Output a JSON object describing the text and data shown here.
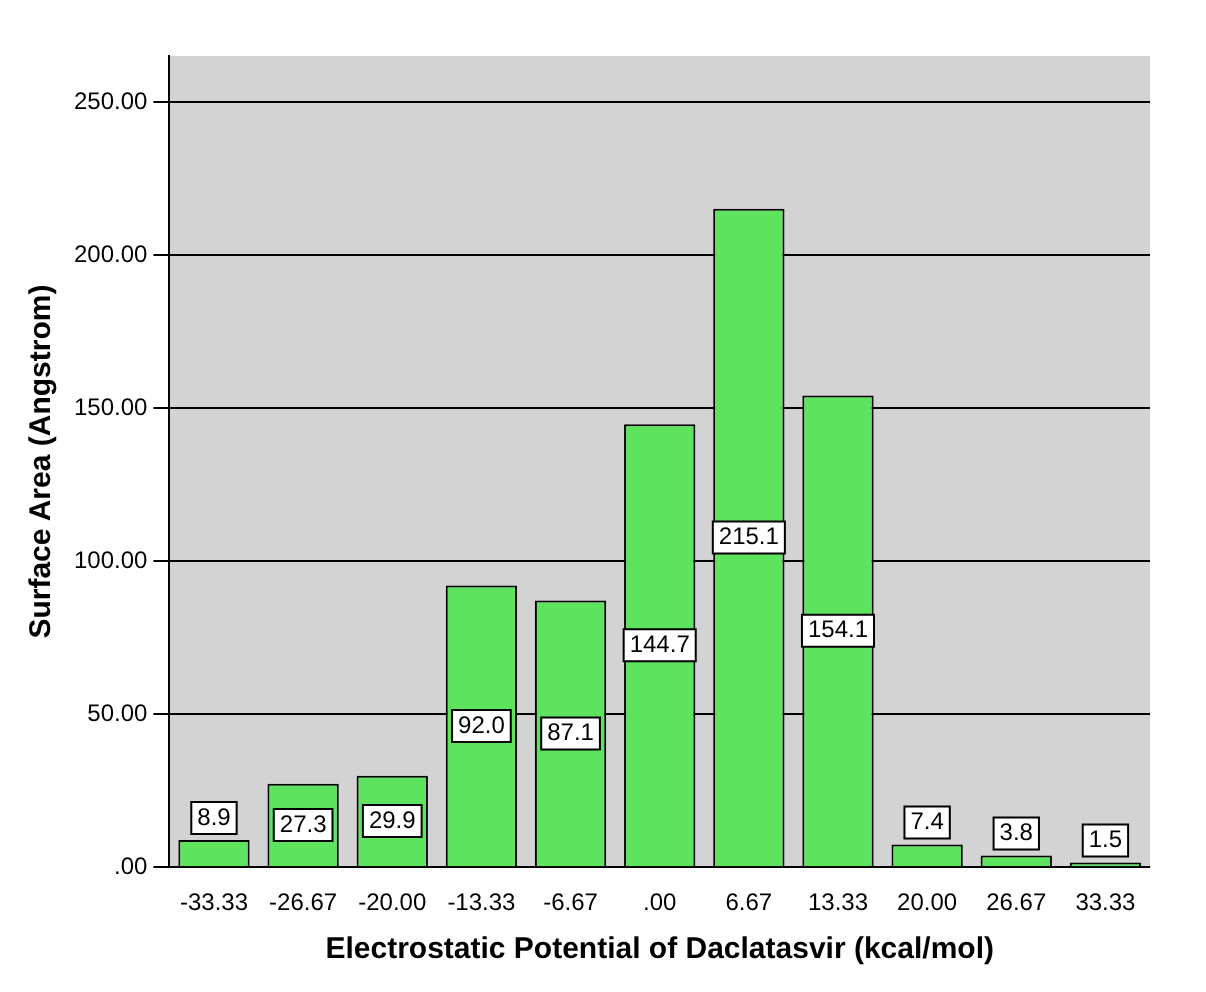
{
  "chart_data": {
    "type": "bar",
    "xlabel": "Electrostatic Potential of Daclatasvir (kcal/mol)",
    "ylabel": "Surface Area (Angstrom)",
    "categories": [
      "-33.33",
      "-26.67",
      "-20.00",
      "-13.33",
      "-6.67",
      ".00",
      "6.67",
      "13.33",
      "20.00",
      "26.67",
      "33.33"
    ],
    "values": [
      8.9,
      27.3,
      29.9,
      92.0,
      87.1,
      144.7,
      215.1,
      154.1,
      7.4,
      3.8,
      1.5
    ],
    "value_labels": [
      "8.9",
      "27.3",
      "29.9",
      "92.0",
      "87.1",
      "144.7",
      "215.1",
      "154.1",
      "7.4",
      "3.8",
      "1.5"
    ],
    "color": "#5de35d",
    "ylim": [
      0,
      265
    ],
    "yticks": [
      {
        "value": 0,
        "label": ".00"
      },
      {
        "value": 50,
        "label": "50.00"
      },
      {
        "value": 100,
        "label": "100.00"
      },
      {
        "value": 150,
        "label": "150.00"
      },
      {
        "value": 200,
        "label": "200.00"
      },
      {
        "value": 250,
        "label": "250.00"
      }
    ],
    "grid": "y"
  }
}
